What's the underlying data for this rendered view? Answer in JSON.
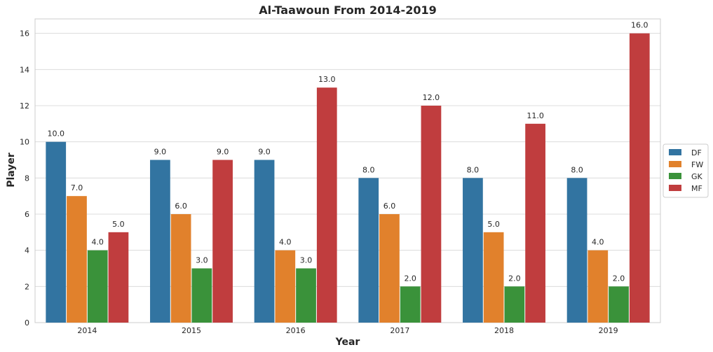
{
  "chart_data": {
    "type": "bar",
    "title": "Al-Taawoun From 2014-2019",
    "xlabel": "Year",
    "ylabel": "Player",
    "categories": [
      "2014",
      "2015",
      "2016",
      "2017",
      "2018",
      "2019"
    ],
    "series": [
      {
        "name": "DF",
        "color": "#3274a1",
        "values": [
          10,
          9,
          9,
          8,
          8,
          8
        ],
        "labels": [
          "10.0",
          "9.0",
          "9.0",
          "8.0",
          "8.0",
          "8.0"
        ]
      },
      {
        "name": "FW",
        "color": "#e1812c",
        "values": [
          7,
          6,
          4,
          6,
          5,
          4
        ],
        "labels": [
          "7.0",
          "6.0",
          "4.0",
          "6.0",
          "5.0",
          "4.0"
        ]
      },
      {
        "name": "GK",
        "color": "#3a923a",
        "values": [
          4,
          3,
          3,
          2,
          2,
          2
        ],
        "labels": [
          "4.0",
          "3.0",
          "3.0",
          "2.0",
          "2.0",
          "2.0"
        ]
      },
      {
        "name": "MF",
        "color": "#c03d3e",
        "values": [
          5,
          9,
          13,
          12,
          11,
          16
        ],
        "labels": [
          "5.0",
          "9.0",
          "13.0",
          "12.0",
          "11.0",
          "16.0"
        ]
      }
    ],
    "yticks": [
      0,
      2,
      4,
      6,
      8,
      10,
      12,
      14,
      16
    ],
    "ytick_labels": [
      "0",
      "2",
      "4",
      "6",
      "8",
      "10",
      "12",
      "14",
      "16"
    ],
    "ylim": [
      0,
      16.8
    ],
    "grid": true,
    "legend_position": "right"
  }
}
